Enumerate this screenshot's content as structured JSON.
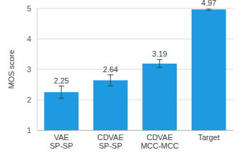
{
  "chart_data": {
    "type": "bar",
    "y_label": "MOS score",
    "categories": [
      "VAE\nSP-SP",
      "CDVAE\nSP-SP",
      "CDVAE\nMCC-MCC",
      "Target"
    ],
    "values": [
      2.25,
      2.64,
      3.19,
      4.97
    ],
    "errors": [
      0.2,
      0.18,
      0.13,
      0.03
    ],
    "color": "#1e9ae0",
    "ylim": [
      1,
      5
    ],
    "yticks": [
      1,
      2,
      3,
      4,
      5
    ],
    "grid": true,
    "data_labels": true
  }
}
